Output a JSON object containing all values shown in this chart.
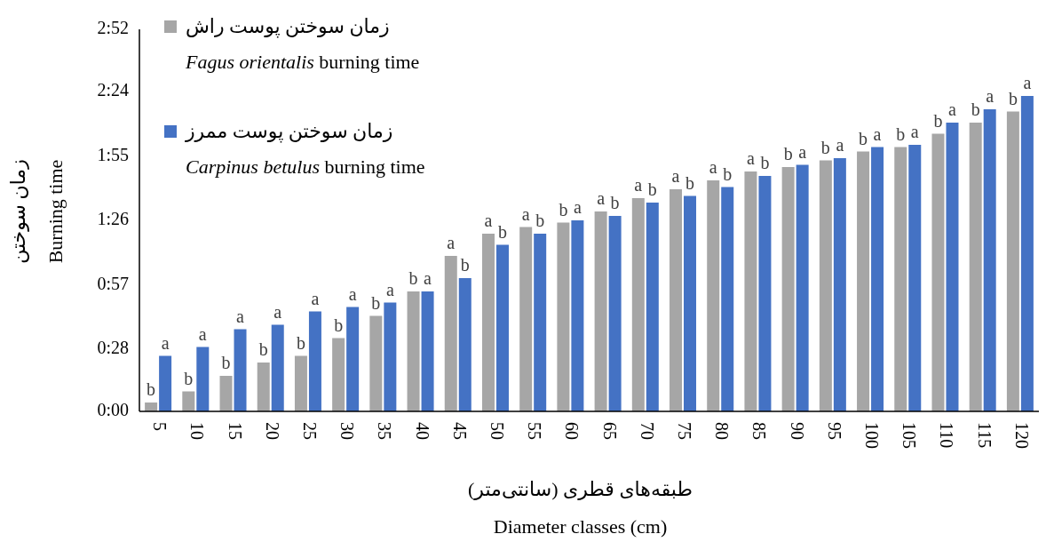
{
  "chart_data": {
    "type": "bar",
    "xlabel": "طبقه‌های قطری (سانتی‌متر)\nDiameter classes (cm)",
    "ylabel": "زمان سوختن\nBurning time",
    "categories": [
      "5",
      "10",
      "15",
      "20",
      "25",
      "30",
      "35",
      "40",
      "45",
      "50",
      "55",
      "60",
      "65",
      "70",
      "75",
      "80",
      "85",
      "90",
      "95",
      "100",
      "105",
      "110",
      "115",
      "120"
    ],
    "series": [
      {
        "name": "زمان سوختن پوست راش\n*Fagus orientalis* burning time",
        "color": "#a6a6a6",
        "values": [
          4,
          9,
          16,
          22,
          25,
          33,
          43,
          54,
          70,
          80,
          83,
          85,
          90,
          96,
          100,
          104,
          108,
          110,
          113,
          117,
          119,
          125,
          130,
          135
        ],
        "value_labels": [
          "b",
          "b",
          "b",
          "b",
          "b",
          "b",
          "b",
          "b",
          "a",
          "a",
          "a",
          "b",
          "a",
          "a",
          "a",
          "a",
          "a",
          "b",
          "b",
          "b",
          "b",
          "b",
          "b",
          "b"
        ]
      },
      {
        "name": "زمان سوختن پوست ممرز\n*Carpinus betulus* burning time",
        "color": "#4472c4",
        "values": [
          25,
          29,
          37,
          39,
          45,
          47,
          49,
          54,
          60,
          75,
          80,
          86,
          88,
          94,
          97,
          101,
          106,
          111,
          114,
          119,
          120,
          130,
          136,
          142
        ],
        "value_labels": [
          "a",
          "a",
          "a",
          "a",
          "a",
          "a",
          "a",
          "a",
          "b",
          "b",
          "b",
          "a",
          "b",
          "b",
          "b",
          "b",
          "b",
          "a",
          "a",
          "a",
          "a",
          "a",
          "a",
          "a"
        ]
      }
    ],
    "ylim": [
      0,
      172
    ],
    "yticks": [
      {
        "value": 0,
        "label": "0:00"
      },
      {
        "value": 28,
        "label": "0:28"
      },
      {
        "value": 57,
        "label": "0:57"
      },
      {
        "value": 86,
        "label": "1:26"
      },
      {
        "value": 115,
        "label": "1:55"
      },
      {
        "value": 144,
        "label": "2:24"
      },
      {
        "value": 172,
        "label": "2:52"
      }
    ],
    "legend": "top left",
    "grid": false
  }
}
